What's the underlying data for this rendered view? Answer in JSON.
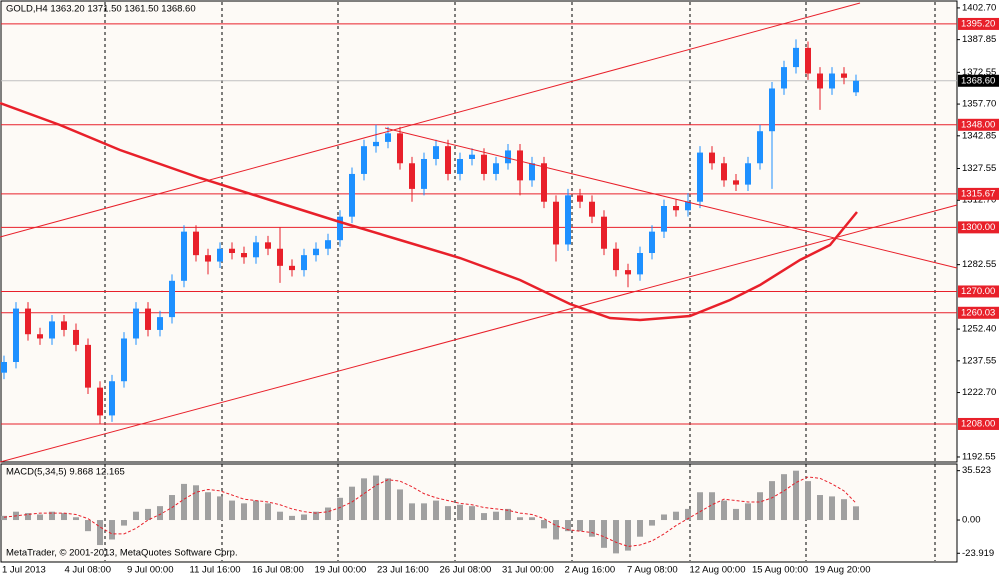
{
  "chart_data": {
    "type": "candlestick",
    "header": "GOLD,H4  1363.20 1371.50 1361.50 1368.60",
    "open": [
      1232,
      1237,
      1262,
      1250,
      1248,
      1256,
      1252,
      1245,
      1225,
      1212,
      1228,
      1248,
      1262,
      1252,
      1258,
      1275,
      1298,
      1287,
      1284,
      1290,
      1288,
      1286,
      1293,
      1290,
      1282,
      1280,
      1287,
      1290,
      1294,
      1305,
      1325,
      1338,
      1340,
      1344,
      1330,
      1318,
      1332,
      1338,
      1325,
      1332,
      1334,
      1325,
      1330,
      1336,
      1322,
      1330,
      1312,
      1292,
      1315,
      1312,
      1305,
      1290,
      1280,
      1278,
      1288,
      1298,
      1310,
      1308,
      1312,
      1335,
      1330,
      1322,
      1320,
      1330,
      1345,
      1365,
      1375,
      1384,
      1372,
      1365,
      1372,
      1363.2
    ],
    "high": [
      1240,
      1265,
      1265,
      1253,
      1259,
      1259,
      1255,
      1248,
      1228,
      1231,
      1251,
      1265,
      1265,
      1261,
      1278,
      1301,
      1301,
      1290,
      1293,
      1293,
      1291,
      1296,
      1296,
      1300,
      1285,
      1290,
      1293,
      1297,
      1308,
      1328,
      1341,
      1348,
      1347,
      1347,
      1333,
      1335,
      1341,
      1341,
      1335,
      1337,
      1337,
      1333,
      1339,
      1339,
      1333,
      1333,
      1315,
      1318,
      1318,
      1315,
      1308,
      1293,
      1283,
      1291,
      1301,
      1313,
      1313,
      1316,
      1338,
      1338,
      1333,
      1325,
      1333,
      1348,
      1368,
      1378,
      1388,
      1387,
      1375,
      1375,
      1375,
      1371.5
    ],
    "low": [
      1229,
      1234,
      1247,
      1245,
      1245,
      1249,
      1242,
      1222,
      1208,
      1209,
      1225,
      1245,
      1249,
      1249,
      1255,
      1272,
      1284,
      1278,
      1281,
      1285,
      1283,
      1283,
      1287,
      1274,
      1277,
      1277,
      1284,
      1287,
      1291,
      1302,
      1322,
      1335,
      1337,
      1327,
      1312,
      1315,
      1329,
      1322,
      1322,
      1329,
      1322,
      1322,
      1327,
      1315,
      1319,
      1309,
      1284,
      1289,
      1309,
      1302,
      1287,
      1277,
      1272,
      1275,
      1285,
      1295,
      1305,
      1305,
      1309,
      1327,
      1319,
      1317,
      1317,
      1327,
      1318,
      1362,
      1372,
      1369,
      1355,
      1362,
      1367,
      1361.5
    ],
    "close": [
      1237,
      1262,
      1250,
      1248,
      1256,
      1252,
      1245,
      1225,
      1212,
      1228,
      1248,
      1262,
      1252,
      1258,
      1275,
      1298,
      1287,
      1284,
      1290,
      1288,
      1286,
      1293,
      1290,
      1282,
      1280,
      1287,
      1290,
      1294,
      1305,
      1325,
      1338,
      1340,
      1344,
      1330,
      1318,
      1332,
      1338,
      1325,
      1332,
      1334,
      1325,
      1330,
      1336,
      1322,
      1330,
      1312,
      1292,
      1315,
      1312,
      1305,
      1290,
      1280,
      1278,
      1288,
      1298,
      1310,
      1308,
      1312,
      1335,
      1330,
      1322,
      1320,
      1330,
      1345,
      1365,
      1375,
      1384,
      1372,
      1365,
      1372,
      1370,
      1368.6
    ],
    "up_color": "#1e90ff",
    "down_color": "#e8202a",
    "ylim": [
      1190.2,
      1406.4
    ],
    "yticks": [
      {
        "value": 1402.7,
        "label": "1402.70"
      },
      1387.85,
      1372.55,
      {
        "value": 1357.7,
        "label": "1357.70"
      },
      1342.85,
      1327.55,
      {
        "value": 1312.7,
        "label": "1312.70"
      },
      1282.55,
      {
        "value": 1252.4,
        "label": "1252.40"
      },
      1237.55,
      {
        "value": 1222.7,
        "label": "1222.70"
      },
      1192.55
    ],
    "levels": [
      {
        "value": 1395.2,
        "label": "1395.20"
      },
      {
        "value": 1348,
        "label": "1348.00"
      },
      1315.67,
      {
        "value": 1300,
        "label": "1300.00"
      },
      {
        "value": 1270,
        "label": "1270.00"
      },
      1260.03,
      {
        "value": 1208,
        "label": "1208.00"
      }
    ],
    "level_color": "#e8202a",
    "current_price": {
      "value": 1368.6,
      "label": "1368.60"
    },
    "x_labels": [
      "1 Jul 2013",
      "4 Jul 08:00",
      "9 Jul 00:00",
      "11 Jul 16:00",
      "16 Jul 08:00",
      "19 Jul 00:00",
      "23 Jul 16:00",
      "26 Jul 08:00",
      "31 Jul 00:00",
      "2 Aug 16:00",
      "7 Aug 08:00",
      "12 Aug 00:00",
      "15 Aug 00:00",
      "19 Aug 20:00"
    ],
    "macd": {
      "header": "MACD(5,34,5) 9.868 12.165",
      "values": [
        3,
        6,
        5,
        4,
        6,
        5,
        2,
        -8,
        -18,
        -14,
        -4,
        6,
        8,
        10,
        18,
        26,
        25,
        20,
        17,
        14,
        12,
        14,
        12,
        6,
        3,
        4,
        6,
        9,
        16,
        24,
        30,
        32,
        30,
        22,
        12,
        12,
        14,
        10,
        11,
        10,
        5,
        6,
        8,
        2,
        2,
        -6,
        -14,
        -8,
        -8,
        -12,
        -20,
        -24,
        -22,
        -12,
        -4,
        4,
        6,
        8,
        20,
        20,
        14,
        8,
        12,
        20,
        28,
        33,
        35.5,
        28,
        18,
        17,
        15,
        9.868
      ],
      "signal": [
        2,
        3,
        4,
        5,
        5,
        5,
        4,
        1,
        -5,
        -10,
        -10,
        -6,
        0,
        4,
        9,
        15,
        20,
        22,
        21,
        18,
        15,
        14,
        13,
        11,
        8,
        6,
        5,
        6,
        9,
        13,
        19,
        25,
        29,
        28,
        24,
        19,
        16,
        14,
        12,
        11,
        9,
        8,
        7,
        5,
        4,
        1,
        -4,
        -7,
        -8,
        -9,
        -12,
        -16,
        -19,
        -18,
        -15,
        -10,
        -4,
        1,
        6,
        11,
        15,
        14,
        13,
        13,
        16,
        21,
        27,
        31,
        30,
        26,
        21,
        12.165
      ],
      "color": "#a0a0a0",
      "signal_color": "#e8202a",
      "ylim": [
        -30.2,
        39.6
      ],
      "yticks": [
        35.523,
        {
          "value": 0,
          "label": "0.00"
        },
        -23.919
      ]
    },
    "footer": "MetaTrader, © 2001-2013, MetaQuotes Software Corp."
  }
}
